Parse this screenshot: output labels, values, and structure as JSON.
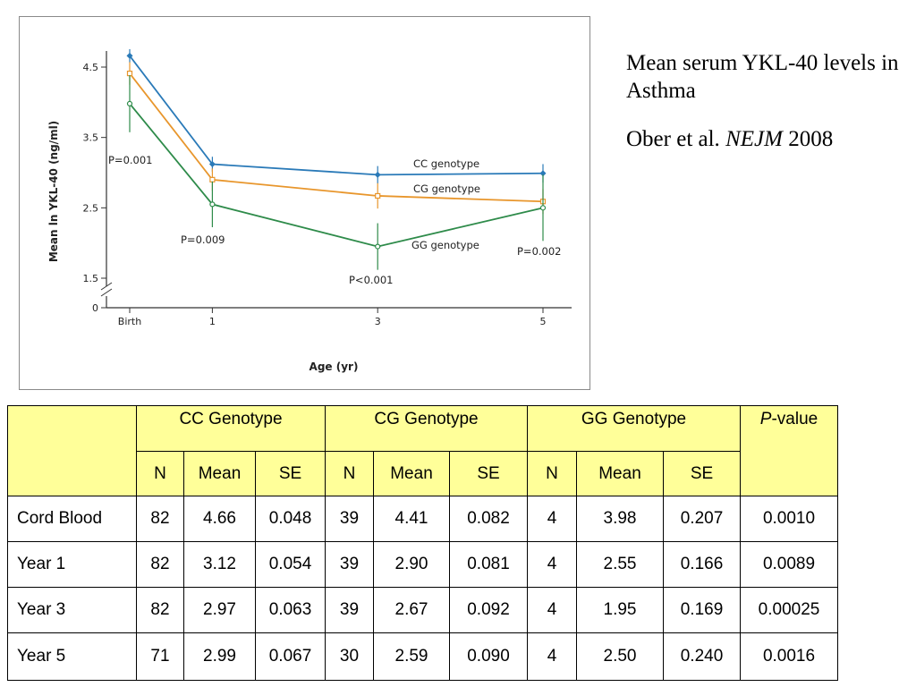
{
  "caption": {
    "title": "Mean serum YKL-40 levels in Asthma",
    "citation_authors": "Ober et al.",
    "citation_journal": "NEJM",
    "citation_year": "2008"
  },
  "chart_data": {
    "type": "line",
    "xlabel": "Age (yr)",
    "ylabel": "Mean ln YKL-40 (ng/ml)",
    "categories": [
      "Birth",
      "1",
      "3",
      "5"
    ],
    "x": [
      0,
      1,
      3,
      5
    ],
    "xlim": [
      0,
      5
    ],
    "ylim": [
      1.5,
      4.5
    ],
    "y_ticks": [
      "0",
      "1.5",
      "2.5",
      "3.5",
      "4.5"
    ],
    "y_axis_break": true,
    "grid": false,
    "series": [
      {
        "name": "CC genotype",
        "color": "#2a7ab8",
        "marker": "diamond",
        "values": [
          4.66,
          3.12,
          2.97,
          2.99
        ],
        "se": [
          0.048,
          0.054,
          0.063,
          0.067
        ]
      },
      {
        "name": "CG genotype",
        "color": "#e8962c",
        "marker": "square",
        "values": [
          4.41,
          2.9,
          2.67,
          2.59
        ],
        "se": [
          0.082,
          0.081,
          0.092,
          0.09
        ]
      },
      {
        "name": "GG genotype",
        "color": "#2e8b4a",
        "marker": "circle",
        "values": [
          3.98,
          2.55,
          1.95,
          2.5
        ],
        "se": [
          0.207,
          0.166,
          0.169,
          0.24
        ]
      }
    ],
    "p_annotations": [
      "P=0.001",
      "P=0.009",
      "P<0.001",
      "P=0.002"
    ]
  },
  "table": {
    "groups": [
      "CC Genotype",
      "CG Genotype",
      "GG Genotype"
    ],
    "pvalue_italic": "P",
    "pvalue_rest": "-value",
    "subheaders": [
      "N",
      "Mean",
      "SE"
    ],
    "rows": [
      {
        "label": "Cord Blood",
        "cells": [
          "82",
          "4.66",
          "0.048",
          "39",
          "4.41",
          "0.082",
          "4",
          "3.98",
          "0.207"
        ],
        "p": "0.0010"
      },
      {
        "label": "Year 1",
        "cells": [
          "82",
          "3.12",
          "0.054",
          "39",
          "2.90",
          "0.081",
          "4",
          "2.55",
          "0.166"
        ],
        "p": "0.0089"
      },
      {
        "label": "Year 3",
        "cells": [
          "82",
          "2.97",
          "0.063",
          "39",
          "2.67",
          "0.092",
          "4",
          "1.95",
          "0.169"
        ],
        "p": "0.00025"
      },
      {
        "label": "Year 5",
        "cells": [
          "71",
          "2.99",
          "0.067",
          "30",
          "2.59",
          "0.090",
          "4",
          "2.50",
          "0.240"
        ],
        "p": "0.0016"
      }
    ]
  }
}
